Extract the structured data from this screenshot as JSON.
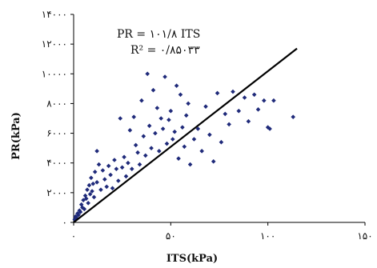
{
  "chart_data": {
    "type": "scatter",
    "title": "",
    "xlabel": "ITS(kPa)",
    "ylabel": "PR(kPa)",
    "xlim": [
      0,
      150
    ],
    "ylim": [
      0,
      14000
    ],
    "x_ticks": [
      0,
      50,
      100,
      150
    ],
    "y_ticks": [
      0,
      2000,
      4000,
      6000,
      8000,
      10000,
      12000,
      14000
    ],
    "x_tick_labels": [
      "۰",
      "۵۰",
      "۱۰۰",
      "۱۵۰"
    ],
    "y_tick_labels": [
      "۰",
      "۲۰۰۰",
      "۴۰۰۰",
      "۶۰۰۰",
      "۸۰۰۰",
      "۱۰۰۰۰",
      "۱۲۰۰۰",
      "۱۴۰۰۰"
    ],
    "grid": false,
    "equation_lines": [
      "PR = ۱۰۱/۸ ITS",
      "R² = ۰/۸۵۰۳۳"
    ],
    "marker_color": "#1f2a7a",
    "fit_color": "#000000",
    "fit_line": {
      "slope": 101.8,
      "x_range": [
        0,
        115
      ]
    },
    "series": [
      {
        "points": [
          [
            0.5,
            200
          ],
          [
            1,
            400
          ],
          [
            1.5,
            300
          ],
          [
            2,
            600
          ],
          [
            2.5,
            500
          ],
          [
            3,
            800
          ],
          [
            3.5,
            700
          ],
          [
            4,
            1200
          ],
          [
            4.5,
            1000
          ],
          [
            5,
            1500
          ],
          [
            5.5,
            900
          ],
          [
            6,
            1800
          ],
          [
            6.5,
            1600
          ],
          [
            7,
            2200
          ],
          [
            7.5,
            1300
          ],
          [
            8,
            2500
          ],
          [
            8.5,
            1900
          ],
          [
            9,
            3000
          ],
          [
            9.5,
            2100
          ],
          [
            10,
            2600
          ],
          [
            10.5,
            1700
          ],
          [
            11,
            3400
          ],
          [
            12,
            4800
          ],
          [
            12,
            2700
          ],
          [
            13,
            3900
          ],
          [
            14,
            2200
          ],
          [
            15,
            3500
          ],
          [
            16,
            2900
          ],
          [
            17,
            2400
          ],
          [
            18,
            3800
          ],
          [
            19,
            3200
          ],
          [
            20,
            2300
          ],
          [
            21,
            4200
          ],
          [
            22,
            3600
          ],
          [
            23,
            2800
          ],
          [
            24,
            7000
          ],
          [
            25,
            3700
          ],
          [
            26,
            4400
          ],
          [
            27,
            3100
          ],
          [
            28,
            4000
          ],
          [
            29,
            6200
          ],
          [
            30,
            3600
          ],
          [
            31,
            7100
          ],
          [
            32,
            5200
          ],
          [
            33,
            4700
          ],
          [
            34,
            3900
          ],
          [
            35,
            8200
          ],
          [
            36,
            5800
          ],
          [
            37,
            4500
          ],
          [
            38,
            10000
          ],
          [
            39,
            6500
          ],
          [
            40,
            5000
          ],
          [
            41,
            8900
          ],
          [
            42,
            6000
          ],
          [
            43,
            7700
          ],
          [
            44,
            4800
          ],
          [
            45,
            7000
          ],
          [
            46,
            6300
          ],
          [
            47,
            9800
          ],
          [
            48,
            5300
          ],
          [
            49,
            6900
          ],
          [
            50,
            7500
          ],
          [
            51,
            5600
          ],
          [
            52,
            6100
          ],
          [
            53,
            9200
          ],
          [
            54,
            4300
          ],
          [
            55,
            8600
          ],
          [
            56,
            6400
          ],
          [
            57,
            5100
          ],
          [
            58,
            7200
          ],
          [
            59,
            8000
          ],
          [
            60,
            3900
          ],
          [
            62,
            5600
          ],
          [
            64,
            6300
          ],
          [
            66,
            4800
          ],
          [
            68,
            7800
          ],
          [
            70,
            5900
          ],
          [
            72,
            4100
          ],
          [
            74,
            8700
          ],
          [
            76,
            5400
          ],
          [
            78,
            7300
          ],
          [
            80,
            6600
          ],
          [
            82,
            8800
          ],
          [
            85,
            7500
          ],
          [
            88,
            8400
          ],
          [
            90,
            6800
          ],
          [
            93,
            8600
          ],
          [
            95,
            7600
          ],
          [
            98,
            8200
          ],
          [
            100,
            6400
          ],
          [
            101,
            6300
          ],
          [
            103,
            8200
          ],
          [
            113,
            7100
          ]
        ]
      }
    ]
  }
}
